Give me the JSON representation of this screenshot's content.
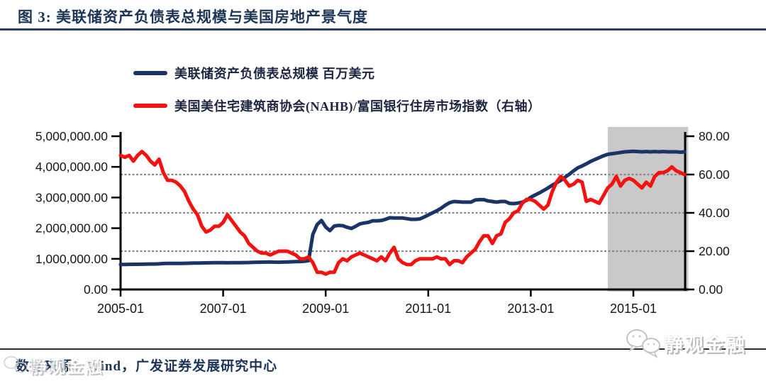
{
  "header": {
    "title": "图 3:  美联储资产负债表总规模与美国房地产景气度"
  },
  "legend": [
    {
      "label": "美联储资产负债表总规模 百万美元",
      "color": "#1b3468"
    },
    {
      "label": "美国美住宅建筑商协会(NAHB)/富国银行住房市场指数（右轴）",
      "color": "#f2120f"
    }
  ],
  "footer": {
    "source": "数据来源：Wind，广发证券发展研究中心"
  },
  "watermark": {
    "text": "静观金融",
    "icon": "wechat-logo"
  },
  "colors": {
    "title_navy": "#1c3557",
    "axis_black": "#000000",
    "gridline_gray": "#8a8a8a",
    "band_gray": "#c9c9c9"
  },
  "chart_data": {
    "type": "line",
    "title": "美联储资产负债表总规模与美国房地产景气度",
    "x_start": "2005-01",
    "x_end": "2016-01",
    "x_step": "month",
    "x_tick_labels": [
      "2005-01",
      "2007-01",
      "2009-01",
      "2011-01",
      "2013-01",
      "2015-01"
    ],
    "left_axis": {
      "range": [
        0,
        5000000
      ],
      "tick_values": [
        5000000,
        4000000,
        3000000,
        2000000,
        1000000,
        0
      ],
      "tick_labels": [
        "5,000,000.00",
        "4,000,000.00",
        "3,000,000.00",
        "2,000,000.00",
        "1,000,000.00",
        "0.00"
      ]
    },
    "right_axis": {
      "range": [
        0,
        80
      ],
      "tick_values": [
        80,
        60,
        40,
        20,
        0
      ],
      "tick_labels": [
        "80.00",
        "60.00",
        "40.00",
        "20.00",
        "0.00"
      ]
    },
    "gridlines_right_values": [
      60,
      40,
      20
    ],
    "grid": "dotted-horizontal",
    "legend_position": "top-left",
    "highlight_band": {
      "x_from": "2014-07",
      "x_to": "2016-01",
      "color": "#c9c9c9"
    },
    "series": [
      {
        "name": "美联储资产负债表总规模 百万美元",
        "axis": "left",
        "color": "#1b3468",
        "values": [
          815000,
          818000,
          820000,
          822000,
          822000,
          825000,
          828000,
          830000,
          832000,
          835000,
          848000,
          852000,
          850000,
          852000,
          853000,
          855000,
          857000,
          860000,
          862000,
          865000,
          868000,
          870000,
          872000,
          875000,
          872000,
          870000,
          872000,
          874000,
          876000,
          878000,
          880000,
          886000,
          890000,
          891000,
          893000,
          896000,
          892000,
          890000,
          894000,
          898000,
          903000,
          908000,
          912000,
          918000,
          940000,
          1800000,
          2120000,
          2250000,
          2040000,
          1920000,
          2070000,
          2090000,
          2080000,
          2030000,
          1990000,
          2060000,
          2140000,
          2170000,
          2190000,
          2240000,
          2240000,
          2250000,
          2290000,
          2340000,
          2330000,
          2330000,
          2330000,
          2310000,
          2290000,
          2290000,
          2300000,
          2360000,
          2430000,
          2500000,
          2570000,
          2650000,
          2750000,
          2830000,
          2870000,
          2860000,
          2850000,
          2850000,
          2850000,
          2920000,
          2930000,
          2930000,
          2890000,
          2870000,
          2850000,
          2870000,
          2870000,
          2810000,
          2800000,
          2820000,
          2850000,
          2910000,
          3010000,
          3080000,
          3150000,
          3230000,
          3310000,
          3400000,
          3480000,
          3560000,
          3660000,
          3760000,
          3870000,
          3970000,
          4030000,
          4100000,
          4180000,
          4240000,
          4300000,
          4360000,
          4410000,
          4430000,
          4450000,
          4470000,
          4490000,
          4500000,
          4510000,
          4500000,
          4490000,
          4500000,
          4490000,
          4500000,
          4490000,
          4500000,
          4490000,
          4490000,
          4490000,
          4480000,
          4490000
        ]
      },
      {
        "name": "美国美住宅建筑商协会(NAHB)/富国银行住房市场指数（右轴）",
        "axis": "right",
        "color": "#f2120f",
        "values": [
          70,
          69,
          70,
          67,
          70,
          72,
          70,
          67,
          65,
          68,
          61,
          57,
          57,
          56,
          54,
          51,
          46,
          42,
          39,
          33,
          30,
          31,
          33,
          33,
          35,
          39,
          36,
          33,
          30,
          28,
          24,
          22,
          20,
          19,
          19,
          18,
          19,
          20,
          20,
          20,
          19,
          18,
          16,
          16,
          17,
          14,
          9,
          9,
          8,
          9,
          9,
          14,
          16,
          15,
          17,
          18,
          19,
          18,
          17,
          16,
          15,
          17,
          15,
          19,
          22,
          16,
          14,
          13,
          13,
          15,
          16,
          16,
          16,
          16,
          17,
          16,
          16,
          13,
          15,
          15,
          14,
          17,
          19,
          21,
          25,
          28,
          28,
          24,
          28,
          29,
          35,
          37,
          40,
          41,
          45,
          47,
          47,
          46,
          44,
          42,
          44,
          51,
          56,
          59,
          57,
          54,
          55,
          57,
          56,
          46,
          47,
          46,
          45,
          49,
          53,
          55,
          59,
          54,
          57,
          58,
          57,
          55,
          53,
          56,
          54,
          59,
          61,
          61,
          62,
          64,
          62,
          61,
          60
        ]
      }
    ]
  }
}
